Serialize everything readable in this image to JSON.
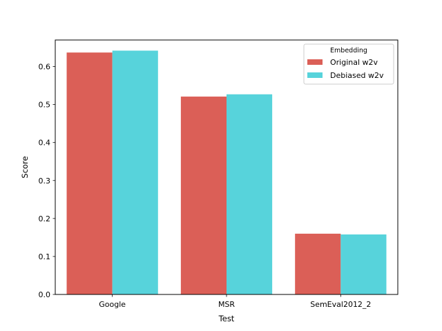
{
  "chart_data": {
    "type": "bar",
    "title": "",
    "xlabel": "Test",
    "ylabel": "Score",
    "categories": [
      "Google",
      "MSR",
      "SemEval2012_2"
    ],
    "series": [
      {
        "name": "Original w2v",
        "color": "#db5f57",
        "values": [
          0.637,
          0.521,
          0.16
        ]
      },
      {
        "name": "Debiased w2v",
        "color": "#57d3db",
        "values": [
          0.642,
          0.527,
          0.158
        ]
      }
    ],
    "ylim": [
      0,
      0.67
    ],
    "yticks": [
      "0.0",
      "0.1",
      "0.2",
      "0.3",
      "0.4",
      "0.5",
      "0.6"
    ],
    "grid": false,
    "legend": {
      "title": "Embedding",
      "position": "top-right"
    }
  }
}
